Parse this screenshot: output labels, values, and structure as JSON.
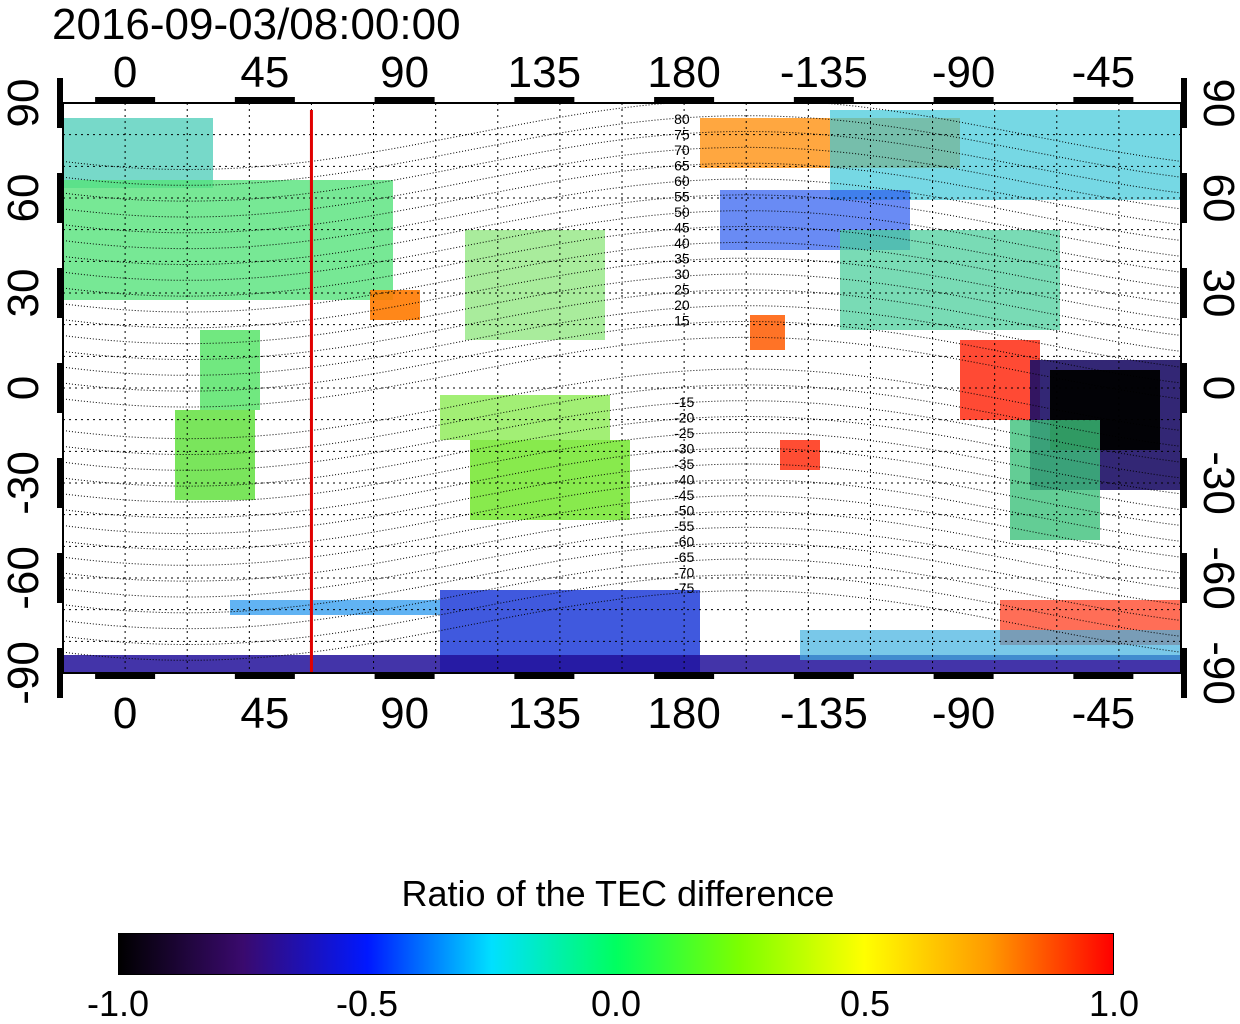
{
  "title": "2016-09-03/08:00:00",
  "map": {
    "top_lon_ticks": [
      "0",
      "45",
      "90",
      "135",
      "180",
      "-135",
      "-90",
      "-45"
    ],
    "bottom_lon_ticks": [
      "0",
      "45",
      "90",
      "135",
      "180",
      "-135",
      "-90",
      "-45"
    ],
    "left_lat_ticks": [
      "90",
      "60",
      "30",
      "0",
      "-30",
      "-60",
      "-90"
    ],
    "right_lat_ticks": [
      "90",
      "60",
      "30",
      "0",
      "-30",
      "-60",
      "-90"
    ],
    "lon_tick_values": [
      0,
      45,
      90,
      135,
      180,
      225,
      270,
      315
    ],
    "lat_tick_values": [
      90,
      60,
      30,
      0,
      -30,
      -60,
      -90
    ],
    "lon_range": [
      -20,
      340
    ],
    "lat_range": [
      -90,
      90
    ],
    "marker_longitude": 60,
    "marker_color": "#e00000",
    "grid": "dotted",
    "magnetic_latitude_labels_north": [
      "80",
      "75",
      "70",
      "65",
      "60",
      "55",
      "50",
      "45",
      "40",
      "35",
      "30",
      "25",
      "20",
      "15"
    ],
    "magnetic_latitude_labels_south": [
      "-15",
      "-20",
      "-25",
      "-30",
      "-35",
      "-40",
      "-45",
      "-50",
      "-55",
      "-60",
      "-65",
      "-70",
      "-75"
    ]
  },
  "colorbar": {
    "title": "Ratio of the TEC difference",
    "ticks": [
      "-1.0",
      "-0.5",
      "0.0",
      "0.5",
      "1.0"
    ],
    "range": [
      -1.0,
      1.0
    ],
    "colors": [
      "#000000",
      "#3a0a6e",
      "#0018ff",
      "#00e0ff",
      "#00ff60",
      "#7dff00",
      "#ffff00",
      "#ff9a00",
      "#ff0000"
    ]
  }
}
